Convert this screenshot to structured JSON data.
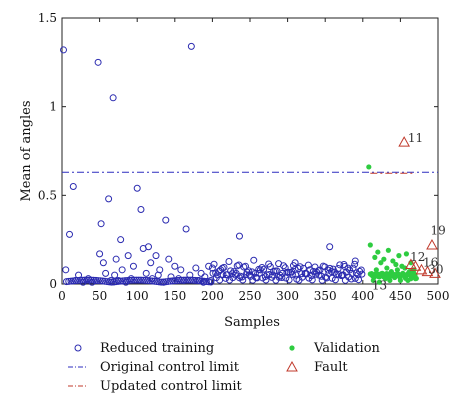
{
  "chart_data": {
    "type": "scatter",
    "xlabel": "Samples",
    "ylabel": "Mean of angles",
    "xlim": [
      0,
      500
    ],
    "ylim": [
      0,
      1.5
    ],
    "x_ticks": [
      "0",
      "50",
      "100",
      "150",
      "200",
      "250",
      "300",
      "350",
      "400",
      "450",
      "500"
    ],
    "y_ticks": [
      "0",
      "0.5",
      "1",
      "1.5"
    ],
    "x_tick_values": [
      0,
      50,
      100,
      150,
      200,
      250,
      300,
      350,
      400,
      450,
      500
    ],
    "y_tick_values": [
      0,
      0.5,
      1,
      1.5
    ],
    "colors": {
      "training": "#2b2bb0",
      "limit": "#2d2dbf",
      "updated": "#c0392b",
      "validation": "#2ecc40",
      "fault": "#c0392b"
    },
    "original_control_limit": 0.63,
    "updated_control_limit_x": [
      410,
      470
    ],
    "updated_control_limit": 0.63,
    "reduced_training": {
      "x": [
        2,
        5,
        10,
        15,
        18,
        22,
        28,
        35,
        40,
        45,
        48,
        50,
        52,
        55,
        58,
        62,
        65,
        68,
        70,
        72,
        75,
        78,
        80,
        85,
        88,
        92,
        95,
        100,
        105,
        108,
        112,
        115,
        118,
        120,
        125,
        128,
        130,
        135,
        138,
        142,
        145,
        150,
        155,
        158,
        162,
        165,
        170,
        172,
        178,
        182,
        185,
        188,
        190,
        195,
        198
      ],
      "y": [
        1.32,
        0.08,
        0.28,
        0.55,
        0.02,
        0.05,
        0.01,
        0.03,
        0.01,
        0.02,
        1.25,
        0.17,
        0.34,
        0.12,
        0.06,
        0.48,
        0.02,
        1.05,
        0.05,
        0.14,
        0.02,
        0.25,
        0.08,
        0.01,
        0.16,
        0.03,
        0.1,
        0.54,
        0.42,
        0.2,
        0.06,
        0.21,
        0.12,
        0.03,
        0.16,
        0.05,
        0.08,
        0.01,
        0.36,
        0.14,
        0.04,
        0.1,
        0.03,
        0.08,
        0.02,
        0.31,
        0.05,
        1.34,
        0.09,
        0.02,
        0.06,
        0.01,
        0.04,
        0.1,
        0.02
      ],
      "band": {
        "x_start": 200,
        "x_end": 400,
        "step": 2.2,
        "y_center": 0.07,
        "y_amp": 0.045
      },
      "extra_points": [
        [
          236,
          0.27
        ],
        [
          310,
          0.12
        ],
        [
          356,
          0.21
        ],
        [
          390,
          0.13
        ],
        [
          375,
          0.11
        ]
      ]
    },
    "validation": {
      "x": [
        408,
        410,
        412,
        414,
        416,
        418,
        420,
        422,
        424,
        426,
        428,
        430,
        432,
        434,
        436,
        438,
        440,
        442,
        444,
        446,
        448,
        450,
        452,
        454,
        456,
        458,
        460,
        462,
        464,
        466,
        468,
        470
      ],
      "y": [
        0.66,
        0.22,
        0.05,
        0.02,
        0.15,
        0.08,
        0.18,
        0.01,
        0.12,
        0.06,
        0.14,
        0.03,
        0.09,
        0.19,
        0.02,
        0.07,
        0.13,
        0.04,
        0.11,
        0.08,
        0.16,
        0.02,
        0.1,
        0.05,
        0.09,
        0.17,
        0.02,
        0.07,
        0.12,
        0.04,
        0.08,
        0.03
      ]
    },
    "fault": {
      "x": [
        455,
        464,
        470,
        478,
        486,
        492,
        496
      ],
      "y": [
        0.8,
        0.11,
        0.1,
        0.08,
        0.07,
        0.22,
        0.06
      ]
    },
    "annotations": [
      {
        "text": "11",
        "x": 460,
        "y": 0.8
      },
      {
        "text": "19",
        "x": 490,
        "y": 0.28
      },
      {
        "text": "12",
        "x": 463,
        "y": 0.13
      },
      {
        "text": "16",
        "x": 480,
        "y": 0.1
      },
      {
        "text": "30",
        "x": 487,
        "y": 0.06
      },
      {
        "text": "13",
        "x": 412,
        "y": -0.03
      }
    ],
    "legend": {
      "position": "bottom",
      "items": [
        {
          "label": "Reduced training",
          "marker": "circle"
        },
        {
          "label": "Original control limit",
          "marker": "dashdot-blue"
        },
        {
          "label": "Updated control limit",
          "marker": "dashdot-red"
        },
        {
          "label": "Validation",
          "marker": "dot-green"
        },
        {
          "label": "Fault",
          "marker": "triangle"
        }
      ]
    }
  }
}
